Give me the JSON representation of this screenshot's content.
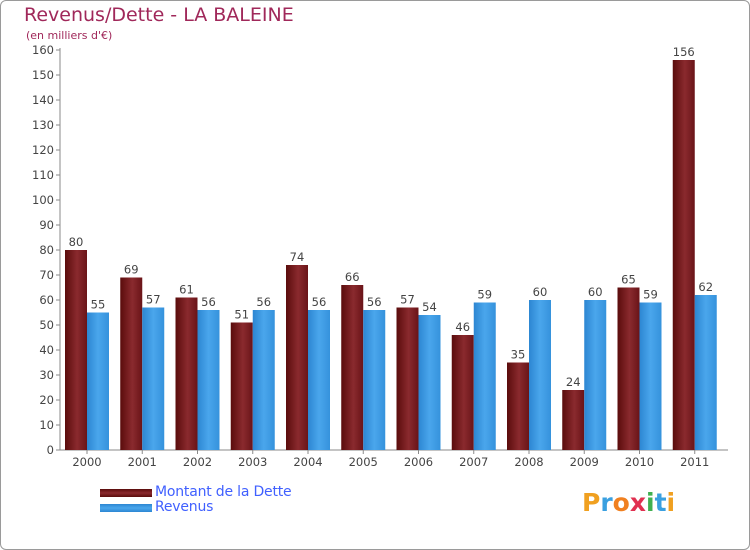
{
  "title": "Revenus/Dette - LA BALEINE",
  "subtitle": "(en milliers d'€)",
  "logo": "Proxiti",
  "colors": {
    "dette": "#7a1a1a",
    "revenus": "#3e9ee6",
    "title": "#a0285a",
    "legend_text": "#4060ff"
  },
  "chart_data": {
    "type": "bar",
    "title": "Revenus/Dette - LA BALEINE",
    "ylabel": "(en milliers d'€)",
    "xlabel": "",
    "categories": [
      "2000",
      "2001",
      "2002",
      "2003",
      "2004",
      "2005",
      "2006",
      "2007",
      "2008",
      "2009",
      "2010",
      "2011"
    ],
    "series": [
      {
        "name": "Montant de la Dette",
        "values": [
          80,
          69,
          61,
          51,
          74,
          66,
          57,
          46,
          35,
          24,
          65,
          156
        ]
      },
      {
        "name": "Revenus",
        "values": [
          55,
          57,
          56,
          56,
          56,
          56,
          54,
          59,
          60,
          60,
          59,
          62
        ]
      }
    ],
    "ylim": [
      0,
      160
    ],
    "yticks": [
      0,
      10,
      20,
      30,
      40,
      50,
      60,
      70,
      80,
      90,
      100,
      110,
      120,
      130,
      140,
      150,
      160
    ],
    "grid": false,
    "legend": "bottom-left"
  }
}
